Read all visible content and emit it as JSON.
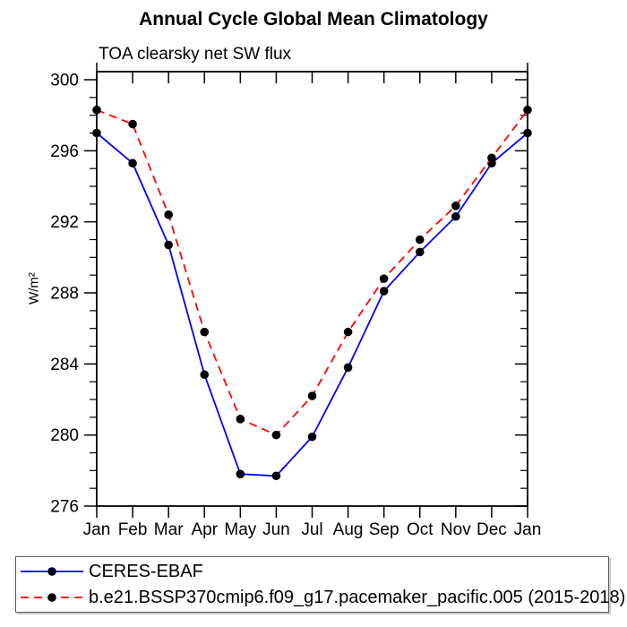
{
  "page": {
    "title": "Annual Cycle Global Mean Climatology",
    "subtitle": "TOA clearsky net SW flux"
  },
  "legend": {
    "items": [
      {
        "label": "CERES-EBAF"
      },
      {
        "label": "b.e21.BSSP370cmip6.f09_g17.pacemaker_pacific.005 (2015-2018)"
      }
    ]
  },
  "chart_data": {
    "type": "line",
    "title": "Annual Cycle Global Mean Climatology",
    "subtitle": "TOA clearsky net SW flux",
    "xlabel": "",
    "ylabel": "W/m²",
    "categories": [
      "Jan",
      "Feb",
      "Mar",
      "Apr",
      "May",
      "Jun",
      "Jul",
      "Aug",
      "Sep",
      "Oct",
      "Nov",
      "Dec",
      "Jan"
    ],
    "ylim": [
      276,
      300.5
    ],
    "yticks": [
      276,
      280,
      284,
      288,
      292,
      296,
      300
    ],
    "y_minor_interval": 1,
    "grid": false,
    "legend_position": "bottom-left-box",
    "axis_color": "#000000",
    "series": [
      {
        "name": "CERES-EBAF",
        "color": "#0000ff",
        "line_style": "solid",
        "marker": "circle",
        "marker_color": "#000000",
        "values": [
          297.0,
          295.3,
          290.7,
          283.4,
          277.8,
          277.7,
          279.9,
          283.8,
          288.1,
          290.3,
          292.3,
          295.3,
          297.0
        ]
      },
      {
        "name": "b.e21.BSSP370cmip6.f09_g17.pacemaker_pacific.005 (2015-2018)",
        "color": "#ff0000",
        "line_style": "dashed",
        "marker": "circle",
        "marker_color": "#000000",
        "values": [
          298.3,
          297.5,
          292.4,
          285.8,
          280.9,
          280.0,
          282.2,
          285.8,
          288.8,
          291.0,
          292.9,
          295.6,
          298.3
        ]
      }
    ]
  }
}
